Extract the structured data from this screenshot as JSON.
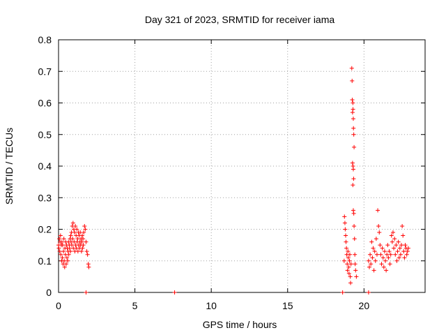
{
  "chart_data": {
    "type": "scatter",
    "title": "Day 321 of 2023, SRMTID for receiver iama",
    "xlabel": "GPS time / hours",
    "ylabel": "SRMTID / TECUs",
    "xlim": [
      0,
      24
    ],
    "ylim": [
      0,
      0.8
    ],
    "xticks": [
      "0",
      "5",
      "10",
      "15",
      "20"
    ],
    "yticks": [
      "0",
      "0.1",
      "0.2",
      "0.3",
      "0.4",
      "0.5",
      "0.6",
      "0.7",
      "0.8"
    ],
    "grid": true,
    "legend": "none",
    "marker": "plus",
    "color": "#ff0000",
    "series": [
      {
        "values": [
          [
            0.0,
            0.15
          ],
          [
            0.02,
            0.14
          ],
          [
            0.05,
            0.17
          ],
          [
            0.08,
            0.13
          ],
          [
            0.1,
            0.16
          ],
          [
            0.13,
            0.18
          ],
          [
            0.15,
            0.12
          ],
          [
            0.18,
            0.15
          ],
          [
            0.2,
            0.1
          ],
          [
            0.22,
            0.16
          ],
          [
            0.25,
            0.11
          ],
          [
            0.27,
            0.15
          ],
          [
            0.3,
            0.09
          ],
          [
            0.32,
            0.13
          ],
          [
            0.35,
            0.17
          ],
          [
            0.37,
            0.1
          ],
          [
            0.4,
            0.08
          ],
          [
            0.42,
            0.14
          ],
          [
            0.45,
            0.12
          ],
          [
            0.47,
            0.16
          ],
          [
            0.5,
            0.09
          ],
          [
            0.52,
            0.15
          ],
          [
            0.55,
            0.11
          ],
          [
            0.57,
            0.14
          ],
          [
            0.6,
            0.1
          ],
          [
            0.62,
            0.13
          ],
          [
            0.65,
            0.16
          ],
          [
            0.67,
            0.12
          ],
          [
            0.7,
            0.15
          ],
          [
            0.72,
            0.14
          ],
          [
            0.75,
            0.17
          ],
          [
            0.78,
            0.13
          ],
          [
            0.8,
            0.18
          ],
          [
            0.82,
            0.16
          ],
          [
            0.85,
            0.19
          ],
          [
            0.87,
            0.15
          ],
          [
            0.9,
            0.21
          ],
          [
            0.92,
            0.17
          ],
          [
            0.95,
            0.22
          ],
          [
            0.97,
            0.14
          ],
          [
            1.0,
            0.2
          ],
          [
            1.02,
            0.16
          ],
          [
            1.05,
            0.19
          ],
          [
            1.07,
            0.13
          ],
          [
            1.1,
            0.21
          ],
          [
            1.12,
            0.15
          ],
          [
            1.15,
            0.18
          ],
          [
            1.17,
            0.14
          ],
          [
            1.2,
            0.2
          ],
          [
            1.22,
            0.16
          ],
          [
            1.25,
            0.17
          ],
          [
            1.27,
            0.13
          ],
          [
            1.3,
            0.19
          ],
          [
            1.32,
            0.15
          ],
          [
            1.35,
            0.18
          ],
          [
            1.37,
            0.14
          ],
          [
            1.4,
            0.16
          ],
          [
            1.42,
            0.19
          ],
          [
            1.45,
            0.15
          ],
          [
            1.47,
            0.17
          ],
          [
            1.5,
            0.13
          ],
          [
            1.52,
            0.16
          ],
          [
            1.55,
            0.18
          ],
          [
            1.57,
            0.14
          ],
          [
            1.6,
            0.17
          ],
          [
            1.62,
            0.15
          ],
          [
            1.65,
            0.19
          ],
          [
            1.7,
            0.21
          ],
          [
            1.75,
            0.2
          ],
          [
            1.8,
            0.16
          ],
          [
            1.85,
            0.13
          ],
          [
            1.9,
            0.12
          ],
          [
            1.95,
            0.09
          ],
          [
            1.98,
            0.08
          ],
          [
            18.7,
            0.1
          ],
          [
            18.72,
            0.24
          ],
          [
            18.75,
            0.22
          ],
          [
            18.77,
            0.2
          ],
          [
            18.8,
            0.18
          ],
          [
            18.82,
            0.16
          ],
          [
            18.85,
            0.14
          ],
          [
            18.87,
            0.12
          ],
          [
            18.9,
            0.09
          ],
          [
            18.92,
            0.07
          ],
          [
            18.95,
            0.13
          ],
          [
            18.97,
            0.11
          ],
          [
            19.0,
            0.08
          ],
          [
            19.02,
            0.06
          ],
          [
            19.05,
            0.1
          ],
          [
            19.07,
            0.12
          ],
          [
            19.1,
            0.05
          ],
          [
            19.12,
            0.03
          ],
          [
            19.15,
            0.09
          ],
          [
            19.2,
            0.71
          ],
          [
            19.22,
            0.67
          ],
          [
            19.23,
            0.61
          ],
          [
            19.25,
            0.57
          ],
          [
            19.27,
            0.6
          ],
          [
            19.28,
            0.58
          ],
          [
            19.3,
            0.55
          ],
          [
            19.31,
            0.52
          ],
          [
            19.33,
            0.5
          ],
          [
            19.35,
            0.46
          ],
          [
            19.25,
            0.41
          ],
          [
            19.28,
            0.4
          ],
          [
            19.3,
            0.39
          ],
          [
            19.32,
            0.36
          ],
          [
            19.27,
            0.34
          ],
          [
            19.3,
            0.26
          ],
          [
            19.33,
            0.25
          ],
          [
            19.35,
            0.21
          ],
          [
            19.38,
            0.17
          ],
          [
            19.4,
            0.12
          ],
          [
            19.42,
            0.09
          ],
          [
            19.45,
            0.07
          ],
          [
            19.5,
            0.05
          ],
          [
            20.3,
            0.1
          ],
          [
            20.35,
            0.08
          ],
          [
            20.4,
            0.12
          ],
          [
            20.45,
            0.09
          ],
          [
            20.5,
            0.16
          ],
          [
            20.55,
            0.11
          ],
          [
            20.6,
            0.14
          ],
          [
            20.65,
            0.07
          ],
          [
            20.7,
            0.13
          ],
          [
            20.75,
            0.1
          ],
          [
            20.8,
            0.17
          ],
          [
            20.85,
            0.12
          ],
          [
            20.9,
            0.26
          ],
          [
            20.95,
            0.21
          ],
          [
            21.0,
            0.19
          ],
          [
            21.05,
            0.15
          ],
          [
            21.1,
            0.12
          ],
          [
            21.15,
            0.09
          ],
          [
            21.2,
            0.14
          ],
          [
            21.25,
            0.11
          ],
          [
            21.3,
            0.08
          ],
          [
            21.35,
            0.13
          ],
          [
            21.4,
            0.1
          ],
          [
            21.45,
            0.07
          ],
          [
            21.5,
            0.12
          ],
          [
            21.55,
            0.15
          ],
          [
            21.6,
            0.11
          ],
          [
            21.65,
            0.13
          ],
          [
            21.7,
            0.09
          ],
          [
            21.75,
            0.12
          ],
          [
            21.8,
            0.18
          ],
          [
            21.85,
            0.16
          ],
          [
            21.9,
            0.19
          ],
          [
            21.95,
            0.14
          ],
          [
            22.0,
            0.17
          ],
          [
            22.05,
            0.12
          ],
          [
            22.1,
            0.15
          ],
          [
            22.15,
            0.1
          ],
          [
            22.2,
            0.13
          ],
          [
            22.25,
            0.16
          ],
          [
            22.3,
            0.11
          ],
          [
            22.35,
            0.14
          ],
          [
            22.4,
            0.12
          ],
          [
            22.45,
            0.15
          ],
          [
            22.5,
            0.21
          ],
          [
            22.55,
            0.18
          ],
          [
            22.6,
            0.13
          ],
          [
            22.65,
            0.11
          ],
          [
            22.7,
            0.15
          ],
          [
            22.75,
            0.14
          ],
          [
            22.8,
            0.12
          ],
          [
            22.85,
            0.13
          ],
          [
            22.9,
            0.14
          ],
          [
            1.8,
            0.0
          ],
          [
            7.6,
            0.0
          ],
          [
            18.6,
            0.0
          ],
          [
            20.3,
            0.0
          ]
        ]
      }
    ]
  }
}
